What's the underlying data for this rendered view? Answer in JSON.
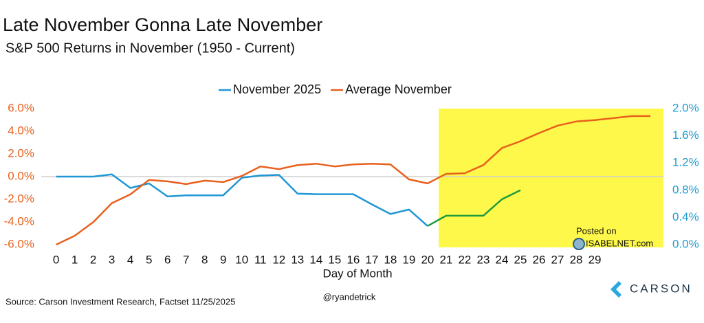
{
  "chart_data": {
    "type": "line",
    "title": "Late November Gonna Late November",
    "subtitle": "S&P 500 Returns in November (1950 - Current)",
    "x_label": "Day of Month",
    "source": "Source: Carson Investment Research, Factset 11/25/2025",
    "credit": "@ryandetrick",
    "watermark": [
      "Posted on",
      "ISABELNET.com"
    ],
    "brand": "CARSON",
    "x": [
      0,
      1,
      2,
      3,
      4,
      5,
      6,
      7,
      8,
      9,
      10,
      11,
      12,
      13,
      14,
      15,
      16,
      17,
      18,
      19,
      20,
      21,
      22,
      23,
      24,
      25,
      26,
      27,
      28,
      29,
      30,
      31,
      32
    ],
    "xlim": [
      -0.8,
      32.7
    ],
    "xticks": [
      0,
      1,
      2,
      3,
      4,
      5,
      6,
      7,
      8,
      9,
      10,
      11,
      12,
      13,
      14,
      15,
      16,
      17,
      18,
      19,
      20,
      21,
      22,
      23,
      24,
      25,
      26,
      27,
      28,
      29
    ],
    "ylim": [
      -6,
      6
    ],
    "yticks": [
      {
        "value": -6,
        "label": "-6.0%"
      },
      {
        "value": -4,
        "label": "-4.0%"
      },
      {
        "value": -2,
        "label": "-2.0%"
      },
      {
        "value": 0,
        "label": "0.0%"
      },
      {
        "value": 2,
        "label": "2.0%"
      },
      {
        "value": 4,
        "label": "4.0%"
      },
      {
        "value": 6,
        "label": "6.0%"
      }
    ],
    "ytick_color": "#e8601c",
    "y2lim": [
      0,
      2
    ],
    "y2ticks": [
      {
        "value": 0,
        "label": "0.0%"
      },
      {
        "value": 0.4,
        "label": "0.4%"
      },
      {
        "value": 0.8,
        "label": "0.8%"
      },
      {
        "value": 1.2,
        "label": "1.2%"
      },
      {
        "value": 1.6,
        "label": "1.6%"
      },
      {
        "value": 2,
        "label": "2.0%"
      }
    ],
    "y2tick_color": "#1b9bd1",
    "zero_line": true,
    "highlight": {
      "x": [
        20.6,
        32.7
      ],
      "color": "#fdf84a"
    },
    "legend": "top",
    "series": [
      {
        "name": "November 2025",
        "color": "#1f97d4",
        "segment_from": 20,
        "segment_color": "#1e9a3c",
        "values": [
          0,
          0,
          0,
          0.2,
          -1.0,
          -0.6,
          -1.75,
          -1.65,
          -1.65,
          -1.65,
          -0.1,
          0.1,
          0.15,
          -1.5,
          -1.55,
          -1.55,
          -1.55,
          -2.45,
          -3.3,
          -2.9,
          -4.35,
          -3.45,
          -3.45,
          -3.45,
          -2.0,
          -1.2,
          null,
          null,
          null,
          null,
          null,
          null,
          null
        ]
      },
      {
        "name": "Average November",
        "color": "#e8601c",
        "axis": "y2",
        "values": [
          0,
          0.13,
          0.33,
          0.61,
          0.74,
          0.95,
          0.93,
          0.89,
          0.94,
          0.92,
          1.01,
          1.15,
          1.11,
          1.17,
          1.19,
          1.15,
          1.18,
          1.19,
          1.18,
          0.96,
          0.9,
          1.04,
          1.05,
          1.17,
          1.42,
          1.52,
          1.64,
          1.75,
          1.81,
          1.83,
          1.86,
          1.89,
          1.89
        ]
      }
    ]
  }
}
